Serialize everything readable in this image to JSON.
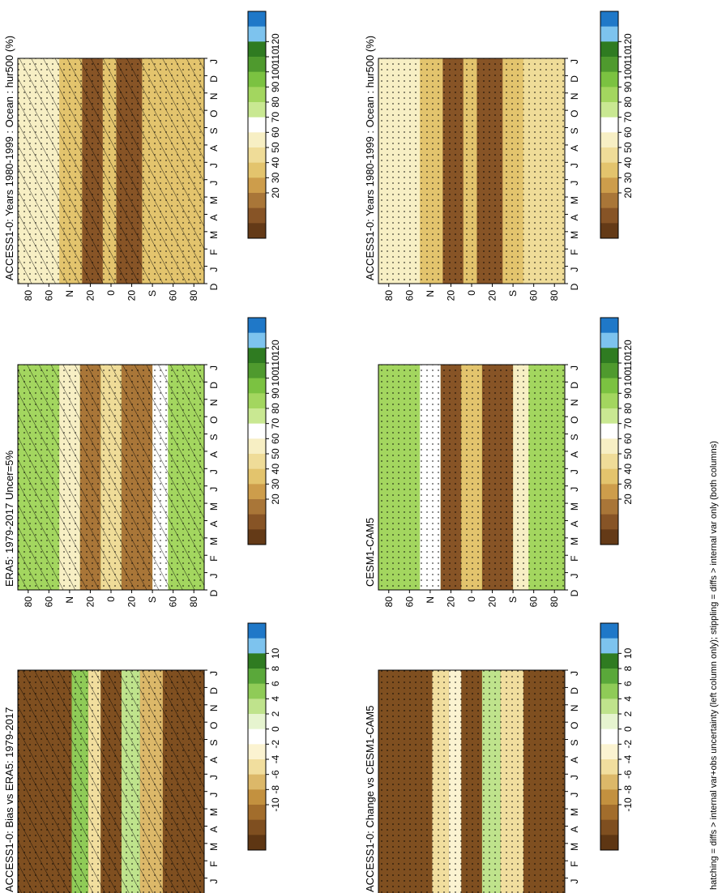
{
  "figure": {
    "footnote": "hatching = diffs > internal var+obs uncertainty (left column only); stippling = diffs > internal var only (both columns)"
  },
  "chart_data": [
    {
      "type": "heatmap",
      "title": "ACCESS1-0: Years 1980-1999 : Ocean : hur500 (%)",
      "xlabel": "",
      "ylabel": "",
      "x": [
        "D",
        "J",
        "F",
        "M",
        "A",
        "M",
        "J",
        "J",
        "A",
        "S",
        "O",
        "N",
        "D",
        "J"
      ],
      "y": [
        "80",
        "60",
        "N",
        "20",
        "0",
        "20",
        "S",
        "60",
        "80"
      ],
      "colorbar": {
        "ticks": [
          "120",
          "110",
          "100",
          "90",
          "80",
          "70",
          "60",
          "50",
          "40",
          "30",
          "20"
        ]
      },
      "zones": [
        {
          "lat_from": -90,
          "lat_to": -50,
          "value": 45
        },
        {
          "lat_from": -50,
          "lat_to": -30,
          "value": 50
        },
        {
          "lat_from": -30,
          "lat_to": -5,
          "value": 24
        },
        {
          "lat_from": -5,
          "lat_to": 8,
          "value": 48
        },
        {
          "lat_from": 8,
          "lat_to": 28,
          "value": 25
        },
        {
          "lat_from": 28,
          "lat_to": 50,
          "value": 50
        },
        {
          "lat_from": 50,
          "lat_to": 90,
          "value": 62
        }
      ],
      "overlays": [
        "hatching",
        "stippling"
      ]
    },
    {
      "type": "heatmap",
      "title": "ACCESS1-0: Years 1980-1999 : Ocean : hur500 (%)",
      "xlabel": "",
      "ylabel": "",
      "x": [
        "D",
        "J",
        "F",
        "M",
        "A",
        "M",
        "J",
        "J",
        "A",
        "S",
        "O",
        "N",
        "D",
        "J"
      ],
      "y": [
        "80",
        "60",
        "N",
        "20",
        "0",
        "20",
        "S",
        "60",
        "80"
      ],
      "colorbar": {
        "ticks": [
          "120",
          "110",
          "100",
          "90",
          "80",
          "70",
          "60",
          "50",
          "40",
          "30",
          "20"
        ]
      },
      "zones": [
        {
          "lat_from": -90,
          "lat_to": -50,
          "value": 52
        },
        {
          "lat_from": -50,
          "lat_to": -30,
          "value": 48
        },
        {
          "lat_from": -30,
          "lat_to": -5,
          "value": 26
        },
        {
          "lat_from": -5,
          "lat_to": 8,
          "value": 45
        },
        {
          "lat_from": 8,
          "lat_to": 28,
          "value": 25
        },
        {
          "lat_from": 28,
          "lat_to": 50,
          "value": 48
        },
        {
          "lat_from": 50,
          "lat_to": 90,
          "value": 65
        }
      ],
      "overlays": [
        "stippling"
      ]
    },
    {
      "type": "heatmap",
      "title": "ERA5: 1979-2017 Uncer=5%",
      "xlabel": "",
      "ylabel": "",
      "x": [
        "D",
        "J",
        "F",
        "M",
        "A",
        "M",
        "J",
        "J",
        "A",
        "S",
        "O",
        "N",
        "D",
        "J"
      ],
      "y": [
        "80",
        "60",
        "N",
        "20",
        "0",
        "20",
        "S",
        "60",
        "80"
      ],
      "colorbar": {
        "ticks": [
          "120",
          "110",
          "100",
          "90",
          "80",
          "70",
          "60",
          "50",
          "40",
          "30",
          "20"
        ]
      },
      "zones": [
        {
          "lat_from": -90,
          "lat_to": -55,
          "value": 85
        },
        {
          "lat_from": -55,
          "lat_to": -40,
          "value": 70
        },
        {
          "lat_from": -40,
          "lat_to": -10,
          "value": 35
        },
        {
          "lat_from": -10,
          "lat_to": 10,
          "value": 52
        },
        {
          "lat_from": 10,
          "lat_to": 30,
          "value": 33
        },
        {
          "lat_from": 30,
          "lat_to": 50,
          "value": 62
        },
        {
          "lat_from": 50,
          "lat_to": 90,
          "value": 85
        }
      ],
      "overlays": [
        "hatching",
        "stippling"
      ]
    },
    {
      "type": "heatmap",
      "title": "CESM1-CAM5",
      "xlabel": "",
      "ylabel": "",
      "x": [
        "D",
        "J",
        "F",
        "M",
        "A",
        "M",
        "J",
        "J",
        "A",
        "S",
        "O",
        "N",
        "D",
        "J"
      ],
      "y": [
        "80",
        "60",
        "N",
        "20",
        "0",
        "20",
        "S",
        "60",
        "80"
      ],
      "colorbar": {
        "ticks": [
          "120",
          "110",
          "100",
          "90",
          "80",
          "70",
          "60",
          "50",
          "40",
          "30",
          "20"
        ]
      },
      "zones": [
        {
          "lat_from": -90,
          "lat_to": -55,
          "value": 82
        },
        {
          "lat_from": -55,
          "lat_to": -40,
          "value": 60
        },
        {
          "lat_from": -40,
          "lat_to": -10,
          "value": 28
        },
        {
          "lat_from": -10,
          "lat_to": 10,
          "value": 50
        },
        {
          "lat_from": 10,
          "lat_to": 30,
          "value": 28
        },
        {
          "lat_from": 30,
          "lat_to": 50,
          "value": 68
        },
        {
          "lat_from": 50,
          "lat_to": 90,
          "value": 82
        }
      ],
      "overlays": [
        "stippling"
      ]
    },
    {
      "type": "heatmap",
      "title": "ACCESS1-0: Bias vs ERA5: 1979-2017",
      "xlabel": "",
      "ylabel": "",
      "x": [
        "D",
        "J",
        "F",
        "M",
        "A",
        "M",
        "J",
        "J",
        "A",
        "S",
        "O",
        "N",
        "D",
        "J"
      ],
      "y": [
        "80",
        "60",
        "N",
        "20",
        "0",
        "20",
        "S",
        "60",
        "80"
      ],
      "colorbar": {
        "ticks": [
          "10",
          "8",
          "6",
          "4",
          "2",
          "0",
          "-2",
          "-4",
          "-6",
          "-8",
          "-10"
        ]
      },
      "zones": [
        {
          "lat_from": -90,
          "lat_to": -50,
          "value": -10
        },
        {
          "lat_from": -50,
          "lat_to": -28,
          "value": -5
        },
        {
          "lat_from": -28,
          "lat_to": -10,
          "value": 2
        },
        {
          "lat_from": -10,
          "lat_to": 10,
          "value": -9
        },
        {
          "lat_from": 10,
          "lat_to": 22,
          "value": -3
        },
        {
          "lat_from": 22,
          "lat_to": 38,
          "value": 4
        },
        {
          "lat_from": 38,
          "lat_to": 90,
          "value": -10
        }
      ],
      "overlays": [
        "hatching",
        "stippling"
      ]
    },
    {
      "type": "heatmap",
      "title": "ACCESS1-0: Change vs CESM1-CAM5",
      "xlabel": "",
      "ylabel": "",
      "x": [
        "D",
        "J",
        "F",
        "M",
        "A",
        "M",
        "J",
        "J",
        "A",
        "S",
        "O",
        "N",
        "D",
        "J"
      ],
      "y": [
        "80",
        "60",
        "N",
        "20",
        "0",
        "20",
        "S",
        "60",
        "80"
      ],
      "colorbar": {
        "ticks": [
          "10",
          "8",
          "6",
          "4",
          "2",
          "0",
          "-2",
          "-4",
          "-6",
          "-8",
          "-10"
        ]
      },
      "zones": [
        {
          "lat_from": -90,
          "lat_to": -50,
          "value": -10
        },
        {
          "lat_from": -50,
          "lat_to": -28,
          "value": -4
        },
        {
          "lat_from": -28,
          "lat_to": -10,
          "value": 3
        },
        {
          "lat_from": -10,
          "lat_to": 10,
          "value": -9
        },
        {
          "lat_from": 10,
          "lat_to": 22,
          "value": -2
        },
        {
          "lat_from": 22,
          "lat_to": 38,
          "value": -3
        },
        {
          "lat_from": 38,
          "lat_to": 90,
          "value": -10
        }
      ],
      "overlays": [
        "stippling"
      ]
    }
  ]
}
